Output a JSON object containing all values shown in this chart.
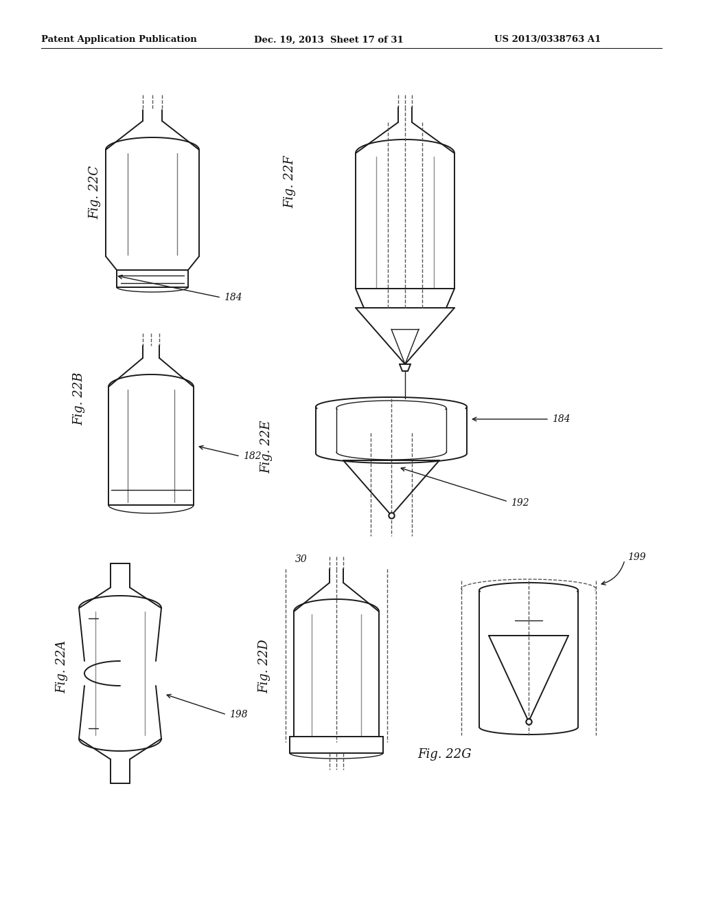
{
  "background_color": "#ffffff",
  "header_left": "Patent Application Publication",
  "header_center": "Dec. 19, 2013  Sheet 17 of 31",
  "header_right": "US 2013/0338763 A1",
  "line_color": "#1a1a1a",
  "dash_color": "#555555"
}
